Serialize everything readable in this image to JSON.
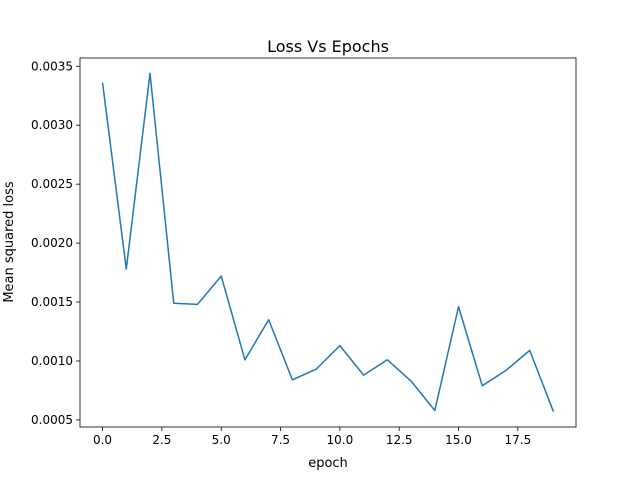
{
  "chart_data": {
    "type": "line",
    "title": "Loss Vs Epochs",
    "xlabel": "epoch",
    "ylabel": "Mean squared loss",
    "xlim": [
      -0.95,
      19.95
    ],
    "ylim": [
      0.00044,
      0.00357
    ],
    "xticks": [
      0,
      2.5,
      5,
      7.5,
      10,
      12.5,
      15,
      17.5
    ],
    "xtick_labels": [
      "0.0",
      "2.5",
      "5.0",
      "7.5",
      "10.0",
      "12.5",
      "15.0",
      "17.5"
    ],
    "yticks": [
      0.0005,
      0.001,
      0.0015,
      0.002,
      0.0025,
      0.003,
      0.0035
    ],
    "ytick_labels": [
      "0.0005",
      "0.0010",
      "0.0015",
      "0.0020",
      "0.0025",
      "0.0030",
      "0.0035"
    ],
    "grid": false,
    "legend": "none",
    "series": [
      {
        "color": "#1f77b4",
        "x": [
          0,
          1,
          2,
          3,
          4,
          5,
          6,
          7,
          8,
          9,
          10,
          11,
          12,
          13,
          14,
          15,
          16,
          17,
          18,
          19
        ],
        "values": [
          0.00336,
          0.00178,
          0.00344,
          0.00149,
          0.00148,
          0.00172,
          0.00101,
          0.00135,
          0.00084,
          0.00093,
          0.00113,
          0.00088,
          0.00101,
          0.00083,
          0.00058,
          0.00146,
          0.00079,
          0.00092,
          0.00109,
          0.00057
        ]
      }
    ]
  }
}
